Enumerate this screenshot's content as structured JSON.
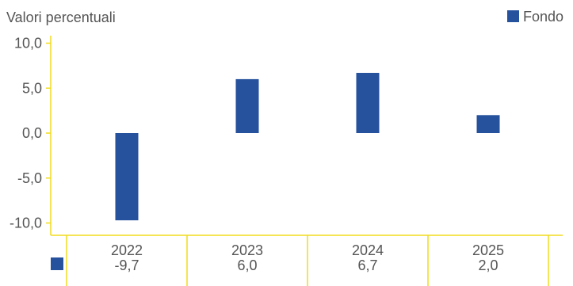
{
  "chart_data": {
    "type": "bar",
    "ylabel": "Valori percentuali",
    "ylim": [
      -11.5,
      11.5
    ],
    "y_ticks": [
      "10,0",
      "5,0",
      "0,0",
      "-5,0",
      "-10,0"
    ],
    "y_tick_values": [
      10,
      5,
      0,
      -5,
      -10
    ],
    "categories": [
      "2022",
      "2023",
      "2024",
      "2025"
    ],
    "series": [
      {
        "name": "Fondo",
        "values": [
          -9.7,
          6.0,
          6.7,
          2.0
        ],
        "labels": [
          "-9,7",
          "6,0",
          "6,7",
          "2,0"
        ],
        "color": "#26519c"
      }
    ],
    "legend_position": "top-right",
    "axis_color": "#f0dc1e",
    "grid": false
  }
}
